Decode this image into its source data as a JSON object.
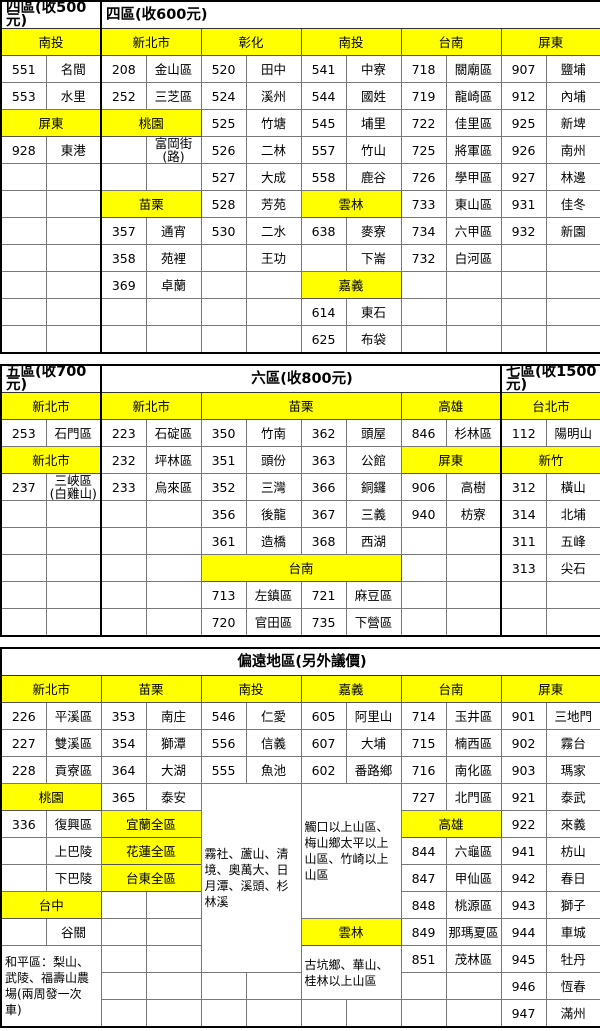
{
  "colors": {
    "header_bg": "#ffff00",
    "border": "#000000"
  },
  "tables": [
    {
      "title": [
        {
          "text": "四區(收500元)",
          "span": 1
        },
        {
          "text": "四區(收600元)",
          "span": 5
        }
      ],
      "header": [
        "南投",
        "新北市",
        "彰化",
        "南投",
        "台南",
        "屏東"
      ],
      "rows": [
        [
          [
            "551",
            "名間"
          ],
          [
            "208",
            "金山區"
          ],
          [
            "520",
            "田中"
          ],
          [
            "541",
            "中寮"
          ],
          [
            "718",
            "關廟區"
          ],
          [
            "907",
            "鹽埔"
          ]
        ],
        [
          [
            "553",
            "水里"
          ],
          [
            "252",
            "三芝區"
          ],
          [
            "524",
            "溪州"
          ],
          [
            "544",
            "國姓"
          ],
          [
            "719",
            "龍崎區"
          ],
          [
            "912",
            "內埔"
          ]
        ],
        [
          {
            "h": "屏東"
          },
          {
            "h": "桃園"
          },
          [
            "525",
            "竹塘"
          ],
          [
            "545",
            "埔里"
          ],
          [
            "722",
            "佳里區"
          ],
          [
            "925",
            "新埤"
          ]
        ],
        [
          [
            "928",
            "東港"
          ],
          [
            "",
            "富岡街(路)"
          ],
          [
            "526",
            "二林"
          ],
          [
            "557",
            "竹山"
          ],
          [
            "725",
            "將軍區"
          ],
          [
            "926",
            "南州"
          ]
        ],
        [
          [
            "",
            ""
          ],
          [
            "",
            ""
          ],
          [
            "527",
            "大成"
          ],
          [
            "558",
            "鹿谷"
          ],
          [
            "726",
            "學甲區"
          ],
          [
            "927",
            "林邊"
          ]
        ],
        [
          [
            "",
            ""
          ],
          {
            "h": "苗栗"
          },
          [
            "528",
            "芳苑"
          ],
          {
            "h": "雲林"
          },
          [
            "733",
            "東山區"
          ],
          [
            "931",
            "佳冬"
          ]
        ],
        [
          [
            "",
            ""
          ],
          [
            "357",
            "通宵"
          ],
          [
            "530",
            "二水"
          ],
          [
            "638",
            "麥寮"
          ],
          [
            "734",
            "六甲區"
          ],
          [
            "932",
            "新園"
          ]
        ],
        [
          [
            "",
            ""
          ],
          [
            "358",
            "苑裡"
          ],
          [
            "",
            "王功"
          ],
          [
            "",
            "下崙"
          ],
          [
            "732",
            "白河區"
          ],
          [
            "",
            ""
          ]
        ],
        [
          [
            "",
            ""
          ],
          [
            "369",
            "卓蘭"
          ],
          [
            "",
            ""
          ],
          {
            "h": "嘉義"
          },
          [
            "",
            ""
          ],
          [
            "",
            ""
          ]
        ],
        [
          [
            "",
            ""
          ],
          [
            "",
            ""
          ],
          [
            "",
            ""
          ],
          [
            "614",
            "東石"
          ],
          [
            "",
            ""
          ],
          [
            "",
            ""
          ]
        ],
        [
          [
            "",
            ""
          ],
          [
            "",
            ""
          ],
          [
            "",
            ""
          ],
          [
            "625",
            "布袋"
          ],
          [
            "",
            ""
          ],
          [
            "",
            ""
          ]
        ]
      ]
    },
    {
      "title": [
        {
          "text": "五區(收700元)",
          "span": 1
        },
        {
          "text": "六區(收800元)",
          "span": 4,
          "center": true
        },
        {
          "text": "七區(收1500元)",
          "span": 1
        }
      ],
      "header": [
        {
          "h": "新北市"
        },
        {
          "h": "新北市"
        },
        {
          "h": "苗栗",
          "w": 2
        },
        {
          "h": "高雄"
        },
        {
          "h": "台北市"
        }
      ],
      "rows": [
        [
          [
            "253",
            "石門區"
          ],
          [
            "223",
            "石碇區"
          ],
          [
            "350",
            "竹南"
          ],
          [
            "362",
            "頭屋"
          ],
          [
            "846",
            "杉林區"
          ],
          [
            "112",
            "陽明山"
          ]
        ],
        [
          {
            "h": "新北市"
          },
          [
            "232",
            "坪林區"
          ],
          [
            "351",
            "頭份"
          ],
          [
            "363",
            "公館"
          ],
          {
            "h": "屏東"
          },
          {
            "h": "新竹"
          }
        ],
        [
          [
            "237",
            "三峽區(白雞山)"
          ],
          [
            "233",
            "烏來區"
          ],
          [
            "352",
            "三灣"
          ],
          [
            "366",
            "銅鑼"
          ],
          [
            "906",
            "高樹"
          ],
          [
            "312",
            "橫山"
          ]
        ],
        [
          [
            "",
            ""
          ],
          [
            "",
            ""
          ],
          [
            "356",
            "後龍"
          ],
          [
            "367",
            "三義"
          ],
          [
            "940",
            "枋寮"
          ],
          [
            "314",
            "北埔"
          ]
        ],
        [
          [
            "",
            ""
          ],
          [
            "",
            ""
          ],
          [
            "361",
            "造橋"
          ],
          [
            "368",
            "西湖"
          ],
          [
            "",
            ""
          ],
          [
            "311",
            "五峰"
          ]
        ],
        [
          [
            "",
            ""
          ],
          [
            "",
            ""
          ],
          {
            "h": "台南",
            "w": 2
          },
          [
            "",
            ""
          ],
          [
            "313",
            "尖石"
          ]
        ],
        [
          [
            "",
            ""
          ],
          [
            "",
            ""
          ],
          [
            "713",
            "左鎮區"
          ],
          [
            "721",
            "麻豆區"
          ],
          [
            "",
            ""
          ],
          [
            "",
            ""
          ]
        ],
        [
          [
            "",
            ""
          ],
          [
            "",
            ""
          ],
          [
            "720",
            "官田區"
          ],
          [
            "735",
            "下營區"
          ],
          [
            "",
            ""
          ],
          [
            "",
            ""
          ]
        ]
      ]
    },
    {
      "title": [
        {
          "text": "偏遠地區(另外議價)",
          "span": 6,
          "center": true
        }
      ],
      "header": [
        "新北市",
        "苗栗",
        "南投",
        "嘉義",
        "台南",
        "屏東"
      ],
      "rows": [
        [
          [
            "226",
            "平溪區"
          ],
          [
            "353",
            "南庄"
          ],
          [
            "546",
            "仁愛"
          ],
          [
            "605",
            "阿里山"
          ],
          [
            "714",
            "玉井區"
          ],
          [
            "901",
            "三地門"
          ]
        ],
        [
          [
            "227",
            "雙溪區"
          ],
          [
            "354",
            "獅潭"
          ],
          [
            "556",
            "信義"
          ],
          [
            "607",
            "大埔"
          ],
          [
            "715",
            "楠西區"
          ],
          [
            "902",
            "霧台"
          ]
        ],
        [
          [
            "228",
            "貢寮區"
          ],
          [
            "364",
            "大湖"
          ],
          [
            "555",
            "魚池"
          ],
          [
            "602",
            "番路鄉"
          ],
          [
            "716",
            "南化區"
          ],
          [
            "903",
            "瑪家"
          ]
        ],
        [
          {
            "h": "桃園"
          },
          [
            "365",
            "泰安"
          ],
          {
            "n": "霧社、蘆山、清境、奧萬大、日月潭、溪頭、杉林溪",
            "r": 7
          },
          {
            "n": "觸口以上山區、梅山鄉太平以上山區、竹崎以上山區",
            "r": 5
          },
          [
            "727",
            "北門區"
          ],
          [
            "921",
            "泰武"
          ]
        ],
        [
          [
            "336",
            "復興區"
          ],
          {
            "h": "宜蘭全區"
          },
          {
            "h": "高雄"
          },
          [
            "922",
            "來義"
          ]
        ],
        [
          [
            "",
            "上巴陵"
          ],
          {
            "h": "花蓮全區"
          },
          [
            "844",
            "六龜區"
          ],
          [
            "941",
            "枋山"
          ]
        ],
        [
          [
            "",
            "下巴陵"
          ],
          {
            "h": "台東全區"
          },
          [
            "847",
            "甲仙區"
          ],
          [
            "942",
            "春日"
          ]
        ],
        [
          {
            "h": "台中"
          },
          [
            "",
            ""
          ],
          [
            "848",
            "桃源區"
          ],
          [
            "943",
            "獅子"
          ]
        ],
        [
          [
            "",
            "谷關"
          ],
          [
            "",
            ""
          ],
          {
            "h": "雲林"
          },
          [
            "849",
            "那瑪夏區"
          ],
          [
            "944",
            "車城"
          ]
        ],
        [
          {
            "n": "和平區：梨山、武陵、福壽山農場(兩周發一次車)",
            "r": 3
          },
          [
            "",
            ""
          ],
          {
            "n": "古坑鄉、華山、桂林以上山區",
            "r": 2
          },
          [
            "851",
            "茂林區"
          ],
          [
            "945",
            "牡丹"
          ]
        ],
        [
          [
            "",
            ""
          ],
          [
            "",
            ""
          ],
          [
            "",
            ""
          ],
          [
            "946",
            "恆春"
          ]
        ],
        [
          [
            "",
            ""
          ],
          [
            "",
            ""
          ],
          [
            "",
            ""
          ],
          [
            "",
            ""
          ],
          [
            "947",
            "滿州"
          ]
        ]
      ]
    }
  ]
}
